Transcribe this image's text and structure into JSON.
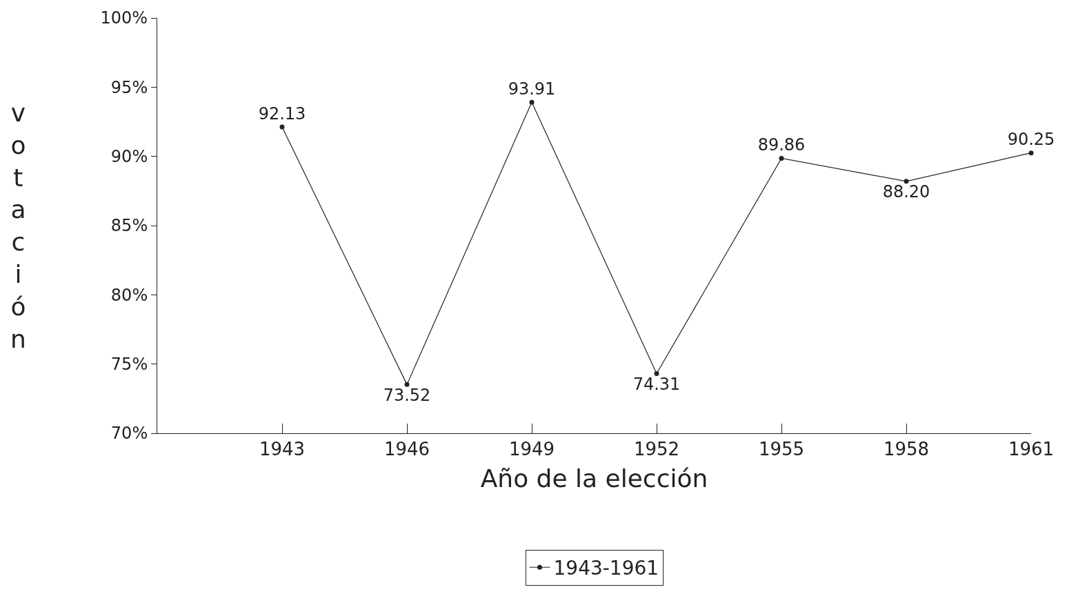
{
  "chart_data": {
    "type": "line",
    "xlabel": "Año de la elección",
    "ylabel": "votación",
    "x": [
      1943,
      1946,
      1949,
      1952,
      1955,
      1958,
      1961
    ],
    "series": [
      {
        "name": "1943-1961",
        "color": "#222222",
        "values": [
          92.13,
          73.52,
          93.91,
          74.31,
          89.86,
          88.2,
          90.25
        ],
        "value_labels": [
          "92.13",
          "73.52",
          "93.91",
          "74.31",
          "89.86",
          "88.20",
          "90.25"
        ]
      }
    ],
    "xlim": [
      1940,
      1961
    ],
    "xticks": [
      1943,
      1946,
      1949,
      1952,
      1955,
      1958,
      1961
    ],
    "ylim": [
      70,
      100
    ],
    "yticks": [
      {
        "value": 70,
        "label": "70%"
      },
      {
        "value": 75,
        "label": "75%"
      },
      {
        "value": 80,
        "label": "80%"
      },
      {
        "value": 85,
        "label": "85%"
      },
      {
        "value": 90,
        "label": "90%"
      },
      {
        "value": 95,
        "label": "95%"
      },
      {
        "value": 100,
        "label": "100%"
      }
    ],
    "legend": "bottom",
    "marker": "circle",
    "line_style": "solid"
  }
}
